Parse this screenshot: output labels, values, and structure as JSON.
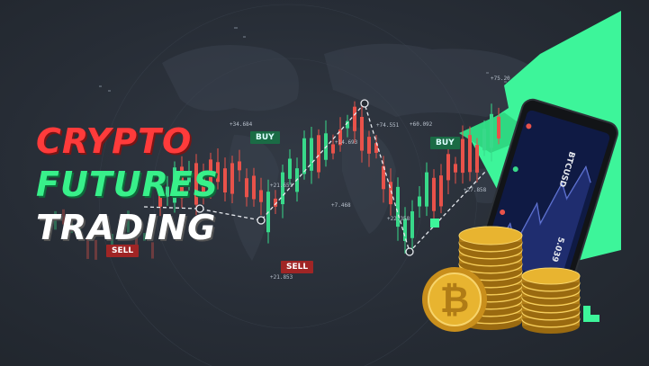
{
  "title": {
    "line1": "CRYPTO",
    "line2": "FUTURES",
    "line3": "TRADING"
  },
  "tags": {
    "buy1": "BUY",
    "buy2": "BUY",
    "sell1": "SELL",
    "sell2": "SELL"
  },
  "phone": {
    "pair": "BTCUSD",
    "price": "5.039"
  },
  "prices": [
    "+34.684",
    "+74.551",
    "+14.693",
    "+60.092",
    "+75.20",
    "+21.651",
    "+7.468",
    "+27.858",
    "+21.853",
    "+22.358"
  ],
  "colors": {
    "bull": "#38d98a",
    "bear": "#e8524a",
    "accent": "#3df59a",
    "gold": "#e8b430"
  },
  "icons": [
    "bitcoin-coin-icon",
    "smartphone-icon",
    "world-map-background"
  ]
}
